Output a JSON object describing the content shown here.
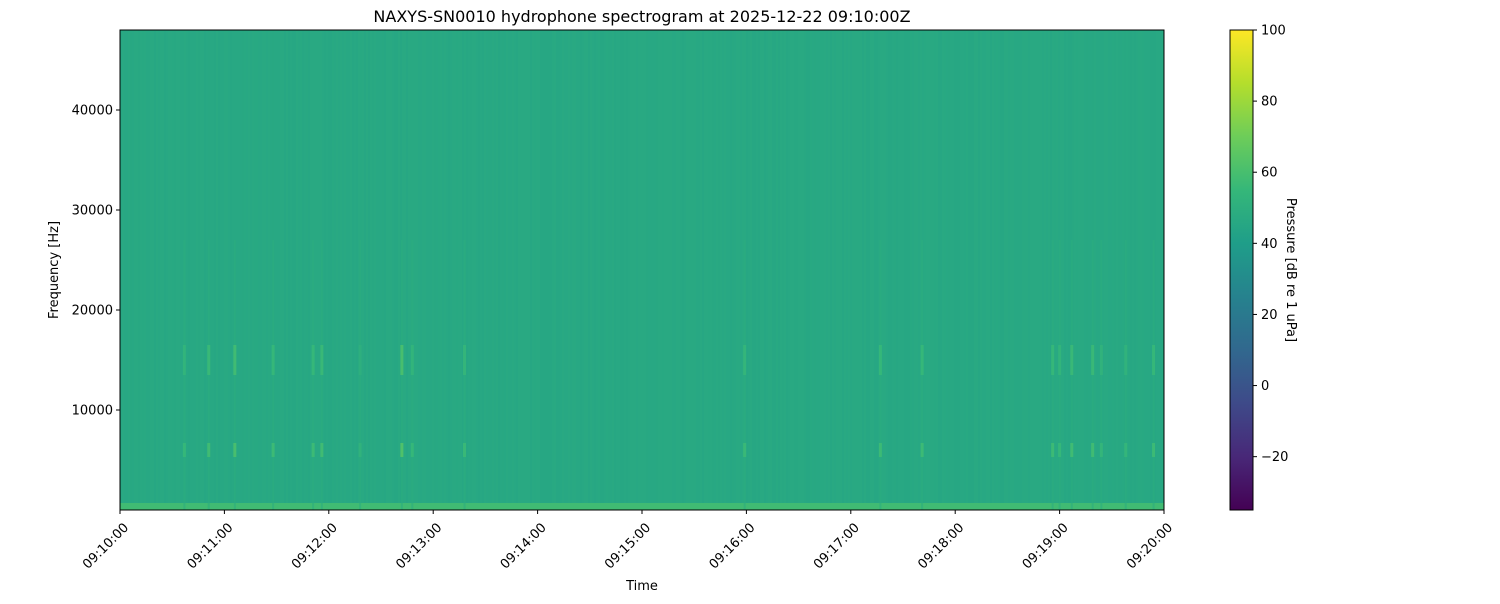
{
  "chart_data": {
    "type": "heatmap",
    "title": "NAXYS-SN0010 hydrophone spectrogram at 2025-12-22 09:10:00Z",
    "xlabel": "Time",
    "ylabel": "Frequency [Hz]",
    "colorbar_label": "Pressure [dB re 1 uPa]",
    "colormap": "viridis",
    "xlim": [
      "09:10:00",
      "09:20:00"
    ],
    "ylim": [
      0,
      48000
    ],
    "clim": [
      -35,
      100
    ],
    "x_ticks": [
      "09:10:00",
      "09:11:00",
      "09:12:00",
      "09:13:00",
      "09:14:00",
      "09:15:00",
      "09:16:00",
      "09:17:00",
      "09:18:00",
      "09:19:00",
      "09:20:00"
    ],
    "y_ticks": [
      10000,
      20000,
      30000,
      40000
    ],
    "colorbar_ticks": [
      -20,
      0,
      20,
      40,
      60,
      80,
      100
    ],
    "background_level_db": 46,
    "low_frequency_band": {
      "freq_max_hz": 500,
      "level_db": 58
    },
    "transient_events": [
      {
        "time": "09:10:37",
        "level_db": 55
      },
      {
        "time": "09:10:51",
        "level_db": 58
      },
      {
        "time": "09:11:06",
        "level_db": 60
      },
      {
        "time": "09:11:28",
        "level_db": 57
      },
      {
        "time": "09:11:51",
        "level_db": 57
      },
      {
        "time": "09:11:56",
        "level_db": 58
      },
      {
        "time": "09:12:18",
        "level_db": 52
      },
      {
        "time": "09:12:42",
        "level_db": 62
      },
      {
        "time": "09:12:48",
        "level_db": 55
      },
      {
        "time": "09:13:18",
        "level_db": 56
      },
      {
        "time": "09:15:59",
        "level_db": 56
      },
      {
        "time": "09:17:17",
        "level_db": 57
      },
      {
        "time": "09:17:41",
        "level_db": 57
      },
      {
        "time": "09:18:56",
        "level_db": 57
      },
      {
        "time": "09:19:00",
        "level_db": 55
      },
      {
        "time": "09:19:07",
        "level_db": 58
      },
      {
        "time": "09:19:19",
        "level_db": 58
      },
      {
        "time": "09:19:24",
        "level_db": 54
      },
      {
        "time": "09:19:38",
        "level_db": 54
      },
      {
        "time": "09:19:54",
        "level_db": 57
      }
    ],
    "event_bands_hz": [
      6000,
      15000
    ],
    "grid": false
  }
}
